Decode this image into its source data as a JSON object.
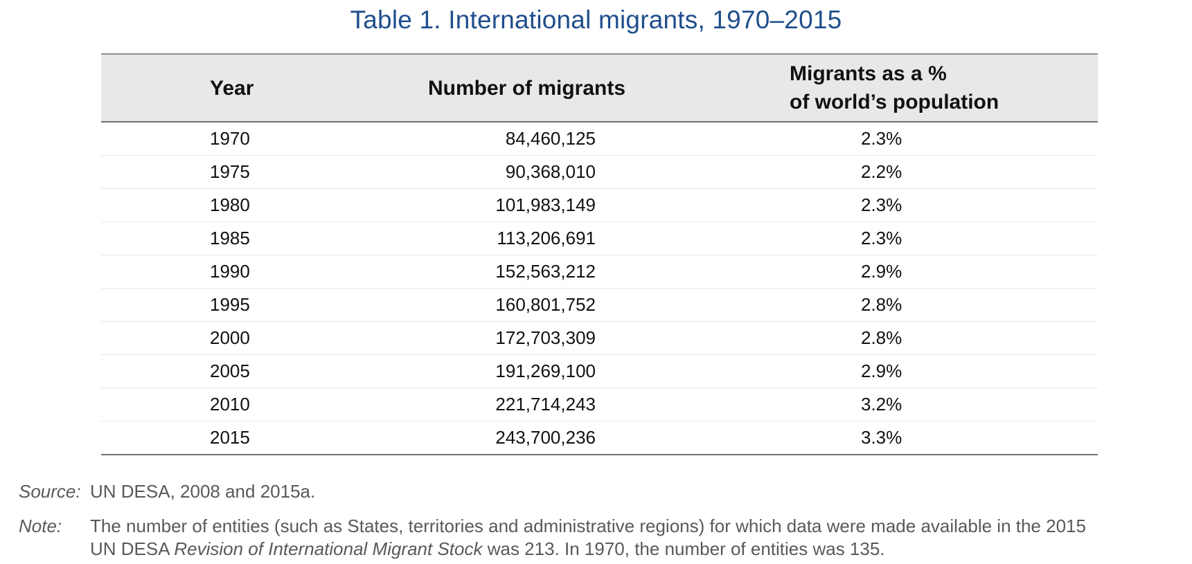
{
  "title": "Table 1. International migrants, 1970–2015",
  "table": {
    "headers": {
      "year": "Year",
      "number": "Number of migrants",
      "percent_line1": "Migrants as a %",
      "percent_line2": "of world’s population"
    },
    "rows": [
      {
        "year": "1970",
        "number": "84,460,125",
        "percent": "2.3%"
      },
      {
        "year": "1975",
        "number": "90,368,010",
        "percent": "2.2%"
      },
      {
        "year": "1980",
        "number": "101,983,149",
        "percent": "2.3%"
      },
      {
        "year": "1985",
        "number": "113,206,691",
        "percent": "2.3%"
      },
      {
        "year": "1990",
        "number": "152,563,212",
        "percent": "2.9%"
      },
      {
        "year": "1995",
        "number": "160,801,752",
        "percent": "2.8%"
      },
      {
        "year": "2000",
        "number": "172,703,309",
        "percent": "2.8%"
      },
      {
        "year": "2005",
        "number": "191,269,100",
        "percent": "2.9%"
      },
      {
        "year": "2010",
        "number": "221,714,243",
        "percent": "3.2%"
      },
      {
        "year": "2015",
        "number": "243,700,236",
        "percent": "3.3%"
      }
    ]
  },
  "source": {
    "label": "Source:",
    "text": "UN DESA, 2008 and 2015a."
  },
  "note": {
    "label": "Note:",
    "line1": "The number of entities (such as States, territories and administrative regions) for which data were made available in the 2015",
    "line2_pre": "UN DESA ",
    "line2_italic": "Revision of International Migrant Stock",
    "line2_post": " was 213. In 1970, the number of entities was 135."
  },
  "colors": {
    "title": "#1f4e8c",
    "header_bg": "#e7e8ea",
    "footnote_text": "#595959"
  }
}
